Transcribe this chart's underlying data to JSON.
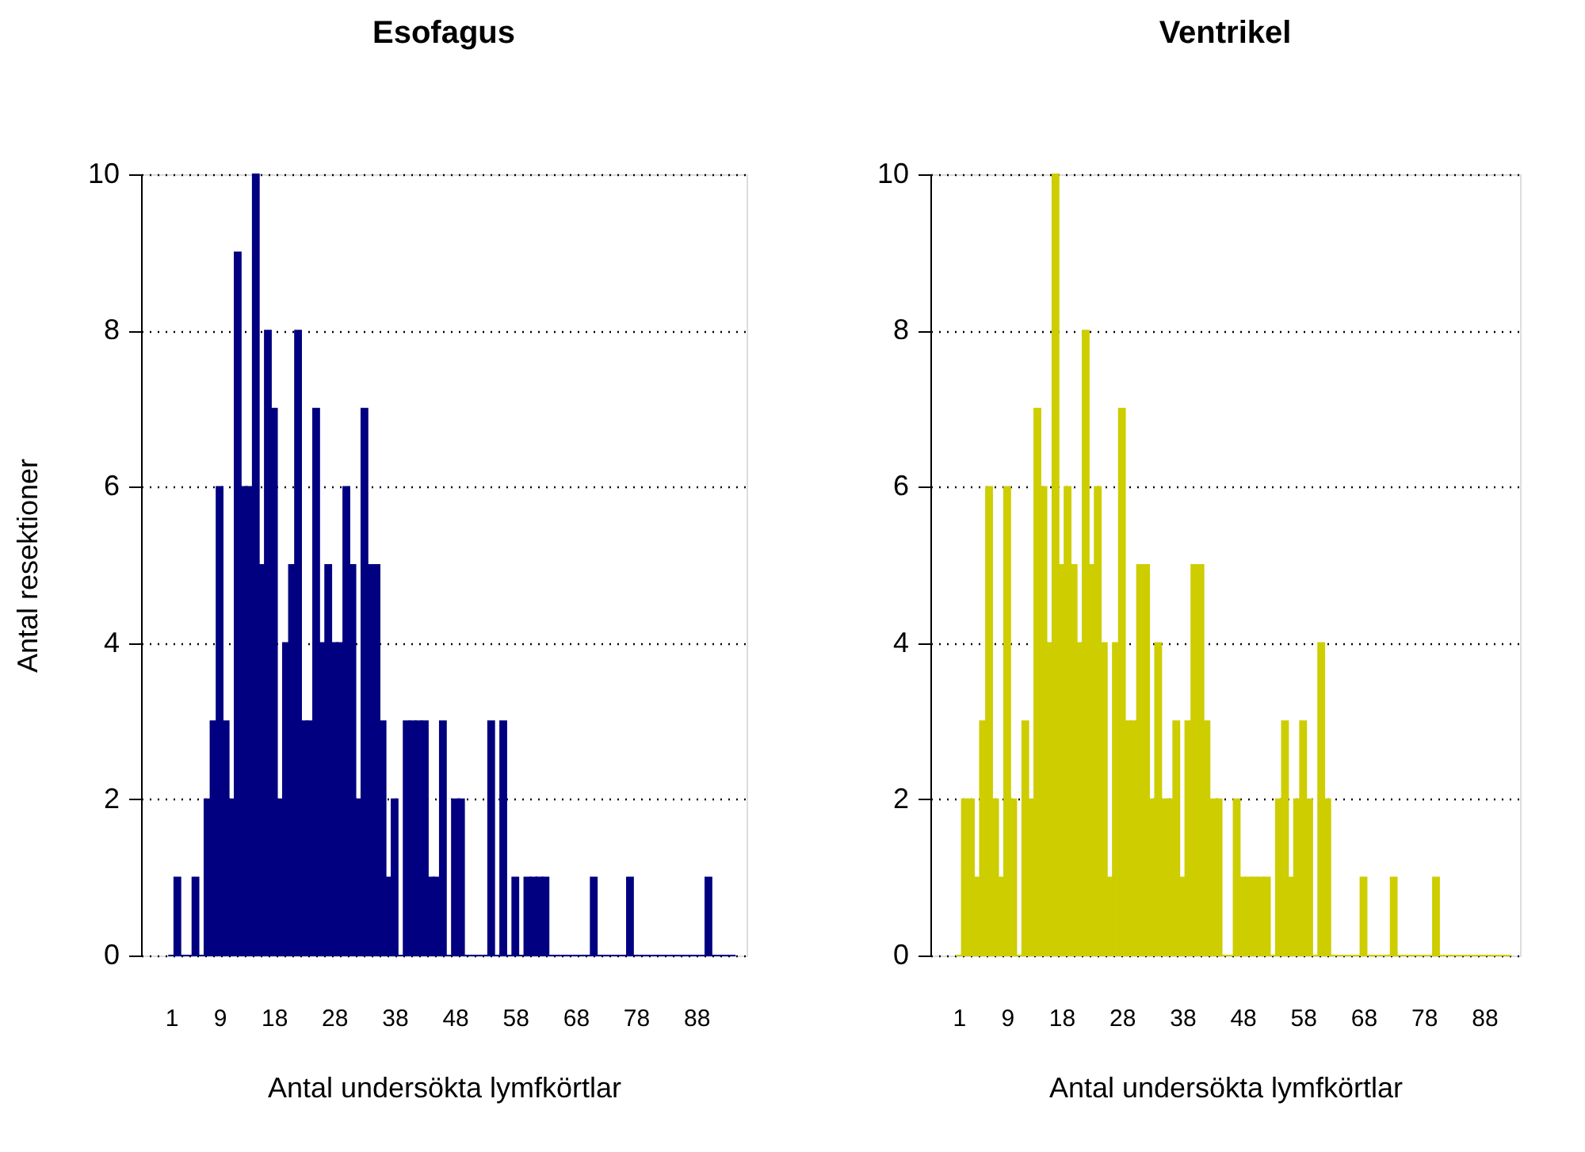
{
  "chart_data": [
    {
      "type": "bar",
      "title": "Esofagus",
      "xlabel": "Antal undersökta lymfkörtlar",
      "ylabel": "Antal resektioner",
      "color": "#000080",
      "x": [
        1,
        2,
        3,
        4,
        5,
        6,
        7,
        8,
        9,
        10,
        11,
        12,
        13,
        14,
        15,
        16,
        17,
        18,
        19,
        20,
        21,
        22,
        23,
        24,
        25,
        26,
        27,
        28,
        29,
        30,
        31,
        32,
        33,
        34,
        35,
        36,
        37,
        38,
        39,
        40,
        41,
        42,
        43,
        44,
        45,
        46,
        47,
        48,
        49,
        50,
        51,
        52,
        53,
        54,
        55,
        56,
        57,
        58,
        59,
        60,
        61,
        62,
        63,
        64,
        65,
        66,
        67,
        68,
        69,
        70,
        71,
        72,
        73,
        74,
        75,
        76,
        77,
        78,
        79,
        80,
        81,
        82,
        83,
        84,
        85,
        86,
        87,
        88,
        89,
        90,
        91,
        92,
        93,
        94
      ],
      "values": [
        0,
        1,
        0,
        0,
        1,
        0,
        2,
        3,
        6,
        3,
        2,
        9,
        6,
        6,
        10,
        5,
        8,
        7,
        2,
        4,
        5,
        8,
        3,
        3,
        7,
        4,
        5,
        4,
        4,
        6,
        5,
        2,
        7,
        5,
        5,
        3,
        1,
        2,
        0,
        3,
        3,
        3,
        3,
        1,
        1,
        3,
        0,
        2,
        2,
        0,
        0,
        0,
        0,
        3,
        0,
        3,
        0,
        1,
        0,
        1,
        1,
        1,
        1,
        0,
        0,
        0,
        0,
        0,
        0,
        0,
        1,
        0,
        0,
        0,
        0,
        0,
        1,
        0,
        0,
        0,
        0,
        0,
        0,
        0,
        0,
        0,
        0,
        0,
        0,
        1,
        0,
        0,
        0,
        0
      ],
      "xlim": [
        -2.7,
        95
      ],
      "ylim": [
        0,
        10
      ],
      "xticks": [
        1,
        9,
        18,
        28,
        38,
        48,
        58,
        68,
        78,
        88
      ],
      "yticks": [
        0,
        2,
        4,
        6,
        8,
        10
      ],
      "grid": "y"
    },
    {
      "type": "bar",
      "title": "Ventrikel",
      "xlabel": "Antal undersökta lymfkörtlar",
      "color": "#cdcd00",
      "x": [
        1,
        2,
        3,
        4,
        5,
        6,
        7,
        8,
        9,
        10,
        11,
        12,
        13,
        14,
        15,
        16,
        17,
        18,
        19,
        20,
        21,
        22,
        23,
        24,
        25,
        26,
        27,
        28,
        29,
        30,
        31,
        32,
        33,
        34,
        35,
        36,
        37,
        38,
        39,
        40,
        41,
        42,
        43,
        44,
        45,
        46,
        47,
        48,
        49,
        50,
        51,
        52,
        53,
        54,
        55,
        56,
        57,
        58,
        59,
        60,
        61,
        62,
        63,
        64,
        65,
        66,
        67,
        68,
        69,
        70,
        71,
        72,
        73,
        74,
        75,
        76,
        77,
        78,
        79,
        80,
        81,
        82,
        83,
        84,
        85,
        86,
        87,
        88,
        89,
        90,
        91,
        92
      ],
      "values": [
        0,
        2,
        2,
        1,
        3,
        6,
        2,
        1,
        6,
        2,
        0,
        3,
        2,
        7,
        6,
        4,
        10,
        5,
        6,
        5,
        4,
        8,
        5,
        6,
        4,
        1,
        4,
        7,
        3,
        3,
        5,
        5,
        2,
        4,
        2,
        2,
        3,
        1,
        3,
        5,
        5,
        3,
        2,
        2,
        0,
        0,
        2,
        1,
        1,
        1,
        1,
        1,
        0,
        2,
        3,
        1,
        2,
        3,
        2,
        0,
        4,
        2,
        0,
        0,
        0,
        0,
        0,
        1,
        0,
        0,
        0,
        0,
        1,
        0,
        0,
        0,
        0,
        0,
        0,
        1,
        0,
        0,
        0,
        0,
        0,
        0,
        0,
        0,
        0,
        0,
        0,
        0
      ],
      "xlim": [
        -2.4,
        92.6
      ],
      "ylim": [
        0,
        10
      ],
      "xticks": [
        1,
        9,
        18,
        28,
        38,
        48,
        58,
        68,
        78,
        88
      ],
      "yticks": [
        0,
        2,
        4,
        6,
        8,
        10
      ],
      "grid": "y"
    }
  ]
}
